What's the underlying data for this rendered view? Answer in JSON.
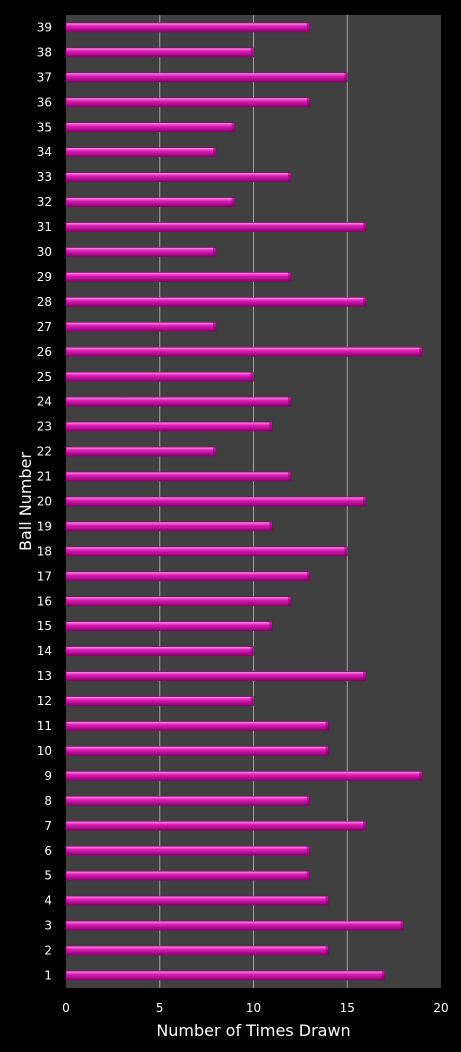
{
  "colors": {
    "page_background": "#000000",
    "plot_background": "#404040",
    "gridline": "#a0a0a0",
    "bar_fill": "#e020b8",
    "bar_highlight": "#ff9af0",
    "bar_shadow": "#8a0070",
    "text": "#ffffff"
  },
  "chart_data": {
    "type": "bar",
    "orientation": "horizontal",
    "title": "",
    "xlabel": "Number of Times Drawn",
    "ylabel": "Ball Number",
    "xlim": [
      0,
      20
    ],
    "x_ticks": [
      "0",
      "5",
      "10",
      "15",
      "20"
    ],
    "grid": true,
    "legend": "none",
    "categories": [
      "1",
      "2",
      "3",
      "4",
      "5",
      "6",
      "7",
      "8",
      "9",
      "10",
      "11",
      "12",
      "13",
      "14",
      "15",
      "16",
      "17",
      "18",
      "19",
      "20",
      "21",
      "22",
      "23",
      "24",
      "25",
      "26",
      "27",
      "28",
      "29",
      "30",
      "31",
      "32",
      "33",
      "34",
      "35",
      "36",
      "37",
      "38",
      "39"
    ],
    "values": [
      17,
      14,
      18,
      14,
      13,
      13,
      16,
      13,
      19,
      14,
      14,
      10,
      16,
      10,
      11,
      12,
      13,
      15,
      11,
      16,
      12,
      8,
      11,
      12,
      10,
      19,
      8,
      16,
      12,
      8,
      16,
      9,
      12,
      8,
      9,
      13,
      15,
      10,
      13
    ]
  }
}
